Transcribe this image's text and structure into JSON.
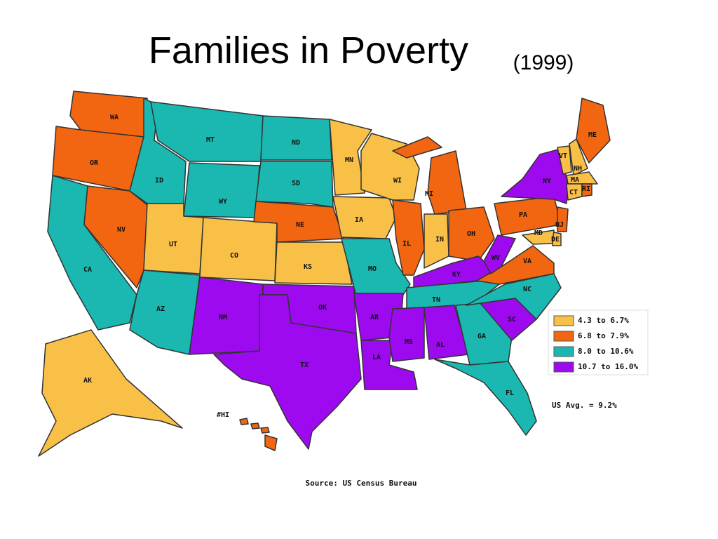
{
  "title": "Families in Poverty",
  "subtitle": "(1999)",
  "states": [
    {
      "label": "WA",
      "color": "#f26611"
    },
    {
      "label": "OR",
      "color": "#f26611"
    },
    {
      "label": "CA",
      "color": "#1ab8b0"
    },
    {
      "label": "NV",
      "color": "#f26611"
    },
    {
      "label": "ID",
      "color": "#1ab8b0"
    },
    {
      "label": "MT",
      "color": "#1ab8b0"
    },
    {
      "label": "WY",
      "color": "#1ab8b0"
    },
    {
      "label": "UT",
      "color": "#f9c048"
    },
    {
      "label": "CO",
      "color": "#f9c048"
    },
    {
      "label": "AZ",
      "color": "#1ab8b0"
    },
    {
      "label": "NM",
      "color": "#9d0aef"
    },
    {
      "label": "ND",
      "color": "#1ab8b0"
    },
    {
      "label": "SD",
      "color": "#1ab8b0"
    },
    {
      "label": "NE",
      "color": "#f26611"
    },
    {
      "label": "KS",
      "color": "#f9c048"
    },
    {
      "label": "OK",
      "color": "#9d0aef"
    },
    {
      "label": "TX",
      "color": "#9d0aef"
    },
    {
      "label": "MN",
      "color": "#f9c048"
    },
    {
      "label": "IA",
      "color": "#f9c048"
    },
    {
      "label": "MO",
      "color": "#1ab8b0"
    },
    {
      "label": "AR",
      "color": "#9d0aef"
    },
    {
      "label": "LA",
      "color": "#9d0aef"
    },
    {
      "label": "WI",
      "color": "#f9c048"
    },
    {
      "label": "IL",
      "color": "#f26611"
    },
    {
      "label": "MI",
      "color": "#f26611"
    },
    {
      "label": "IN",
      "color": "#f9c048"
    },
    {
      "label": "OH",
      "color": "#f26611"
    },
    {
      "label": "KY",
      "color": "#9d0aef"
    },
    {
      "label": "TN",
      "color": "#1ab8b0"
    },
    {
      "label": "MS",
      "color": "#9d0aef"
    },
    {
      "label": "AL",
      "color": "#9d0aef"
    },
    {
      "label": "GA",
      "color": "#1ab8b0"
    },
    {
      "label": "FL",
      "color": "#1ab8b0"
    },
    {
      "label": "SC",
      "color": "#9d0aef"
    },
    {
      "label": "NC",
      "color": "#1ab8b0"
    },
    {
      "label": "VA",
      "color": "#f26611"
    },
    {
      "label": "WV",
      "color": "#9d0aef"
    },
    {
      "label": "PA",
      "color": "#f26611"
    },
    {
      "label": "NY",
      "color": "#9d0aef"
    },
    {
      "label": "VT",
      "color": "#f9c048"
    },
    {
      "label": "NH",
      "color": "#f9c048"
    },
    {
      "label": "ME",
      "color": "#f26611"
    },
    {
      "label": "MA",
      "color": "#f9c048"
    },
    {
      "label": "CT",
      "color": "#f9c048"
    },
    {
      "label": "RI",
      "color": "#f26611"
    },
    {
      "label": "NJ",
      "color": "#f26611"
    },
    {
      "label": "DE",
      "color": "#f9c048"
    },
    {
      "label": "MD",
      "color": "#f9c048"
    },
    {
      "label": "AK",
      "color": "#f9c048"
    },
    {
      "label": "#HI",
      "color": "#f26611"
    }
  ],
  "legend": [
    {
      "label": "4.3 to 6.7%",
      "color": "#f9c048"
    },
    {
      "label": "6.8 to 7.9%",
      "color": "#f26611"
    },
    {
      "label": "8.0 to 10.6%",
      "color": "#1ab8b0"
    },
    {
      "label": "10.7 to 16.0%",
      "color": "#9d0aef"
    }
  ],
  "note": "US Avg. = 9.2%",
  "source": "Source: US Census Bureau"
}
